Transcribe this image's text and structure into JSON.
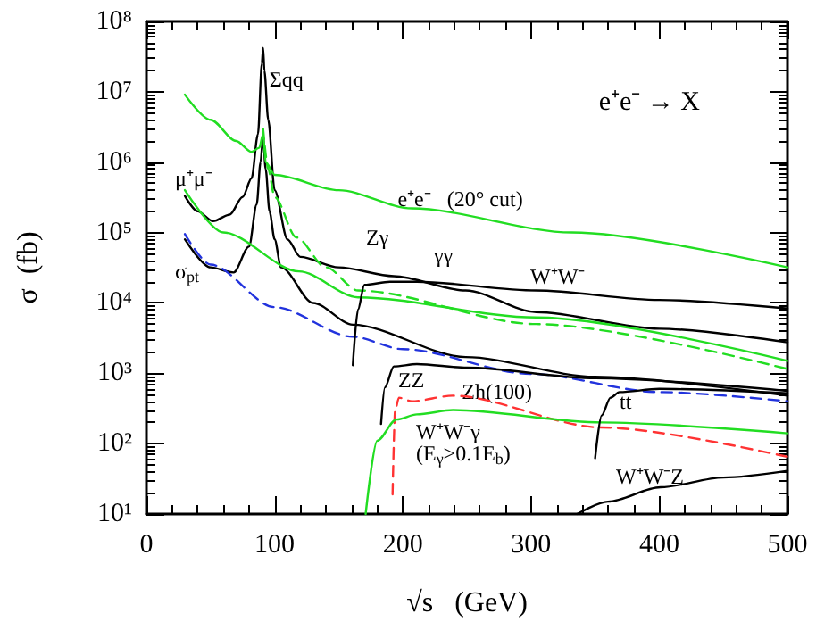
{
  "chart_data": {
    "type": "line",
    "title": "e⁺e⁻ → X",
    "xlabel": "√s   (GeV)",
    "ylabel": "σ  (fb)",
    "xlim": [
      0,
      500
    ],
    "xticks": [
      0,
      100,
      200,
      300,
      400,
      500
    ],
    "ylim": [
      10,
      100000000
    ],
    "log": "y",
    "yticks": [
      {
        "value": 10,
        "label": "10¹"
      },
      {
        "value": 100,
        "label": "10²"
      },
      {
        "value": 1000,
        "label": "10³"
      },
      {
        "value": 10000,
        "label": "10⁴"
      },
      {
        "value": 100000,
        "label": "10⁵"
      },
      {
        "value": 1000000,
        "label": "10⁶"
      },
      {
        "value": 10000000,
        "label": "10⁷"
      },
      {
        "value": 100000000,
        "label": "10⁸"
      }
    ],
    "grid": false,
    "marker": "none",
    "series": [
      {
        "color": "#000000",
        "line_style": "solid",
        "x": [
          30,
          40,
          52,
          65,
          75,
          82,
          87,
          90,
          91,
          92,
          95,
          100,
          110,
          120,
          150,
          193,
          249,
          304,
          400,
          500
        ],
        "values": [
          330000,
          200000,
          145000,
          180000,
          320000,
          590000,
          2500000,
          25000000,
          42000000,
          20000000,
          4000000,
          400000,
          80000,
          45000,
          32000,
          24000,
          15000,
          7400,
          4300,
          2750
        ]
      },
      {
        "color": "#000000",
        "line_style": "solid",
        "x": [
          30,
          50,
          68,
          80,
          86,
          89,
          91,
          93,
          96,
          100,
          105,
          130,
          161,
          249,
          350,
          500
        ],
        "values": [
          80000,
          32000,
          27000,
          63000,
          250000,
          1000000,
          2300000,
          800000,
          200000,
          80000,
          32000,
          10000,
          4900,
          1700,
          890,
          480
        ]
      },
      {
        "color": "#22dd22",
        "line_style": "solid",
        "x": [
          30,
          50,
          70,
          82,
          88,
          91,
          93,
          100,
          150,
          207,
          332,
          500
        ],
        "values": [
          9100000,
          4000000,
          2000000,
          1400000,
          1600000,
          2500000,
          1000000,
          660000,
          400000,
          220000,
          100000,
          32000
        ]
      },
      {
        "color": "#22dd22",
        "line_style": "solid",
        "x": [
          30,
          60,
          119,
          165,
          304,
          500
        ],
        "values": [
          400000,
          100000,
          28000,
          12000,
          6200,
          1500
        ]
      },
      {
        "color": "#22dd22",
        "line_style": "dashed",
        "x": [
          91,
          95,
          100,
          117,
          140,
          165,
          304,
          500
        ],
        "values": [
          3000000,
          800000,
          320000,
          85000,
          32000,
          15000,
          5000,
          1150
        ]
      },
      {
        "color": "#2233dd",
        "line_style": "dashed",
        "x": [
          30,
          50,
          100,
          161,
          200,
          300,
          400,
          500
        ],
        "values": [
          95000,
          35000,
          8700,
          3300,
          2200,
          980,
          540,
          400
        ]
      },
      {
        "color": "#000000",
        "line_style": "solid",
        "x": [
          161,
          165,
          170,
          190,
          211,
          304,
          400,
          500
        ],
        "values": [
          1300,
          8000,
          18000,
          20000,
          20000,
          15000,
          11000,
          8300
        ]
      },
      {
        "color": "#000000",
        "line_style": "solid",
        "x": [
          183,
          186,
          193,
          211,
          250,
          350,
          500
        ],
        "values": [
          190,
          630,
          1250,
          1350,
          1200,
          850,
          560
        ]
      },
      {
        "color": "#ff3333",
        "line_style": "dashed",
        "x": [
          192,
          194,
          197,
          207,
          239,
          355,
          500
        ],
        "values": [
          19,
          300,
          450,
          400,
          480,
          170,
          65
        ]
      },
      {
        "color": "#22dd22",
        "line_style": "solid",
        "x": [
          171,
          180,
          195,
          211,
          239,
          355,
          500
        ],
        "values": [
          10,
          110,
          220,
          260,
          300,
          200,
          140
        ]
      },
      {
        "color": "#000000",
        "line_style": "solid",
        "x": [
          350,
          355,
          362,
          369,
          400,
          500
        ],
        "values": [
          62,
          250,
          450,
          540,
          600,
          520
        ]
      },
      {
        "color": "#000000",
        "line_style": "solid",
        "x": [
          336,
          360,
          401,
          450,
          500
        ],
        "values": [
          10,
          15,
          24,
          33,
          41
        ]
      }
    ],
    "annotations": [
      {
        "text": "Σqq",
        "x": 96,
        "y": 15000000
      },
      "μ⁺μ⁻",
      "σ$_{pt}$",
      {
        "text": "e⁺e⁻   (20° cut)",
        "x": 196,
        "y": 300000
      },
      "Zγ",
      "γγ",
      "W⁺W⁻",
      "ZZ",
      {
        "text": "Zh(100)",
        "x": 246,
        "y": 540
      },
      "tt",
      "W⁺W⁻γ",
      "(E$_{γ}$>0.1E$_{b}$)",
      "W⁺W⁻Z"
    ]
  }
}
